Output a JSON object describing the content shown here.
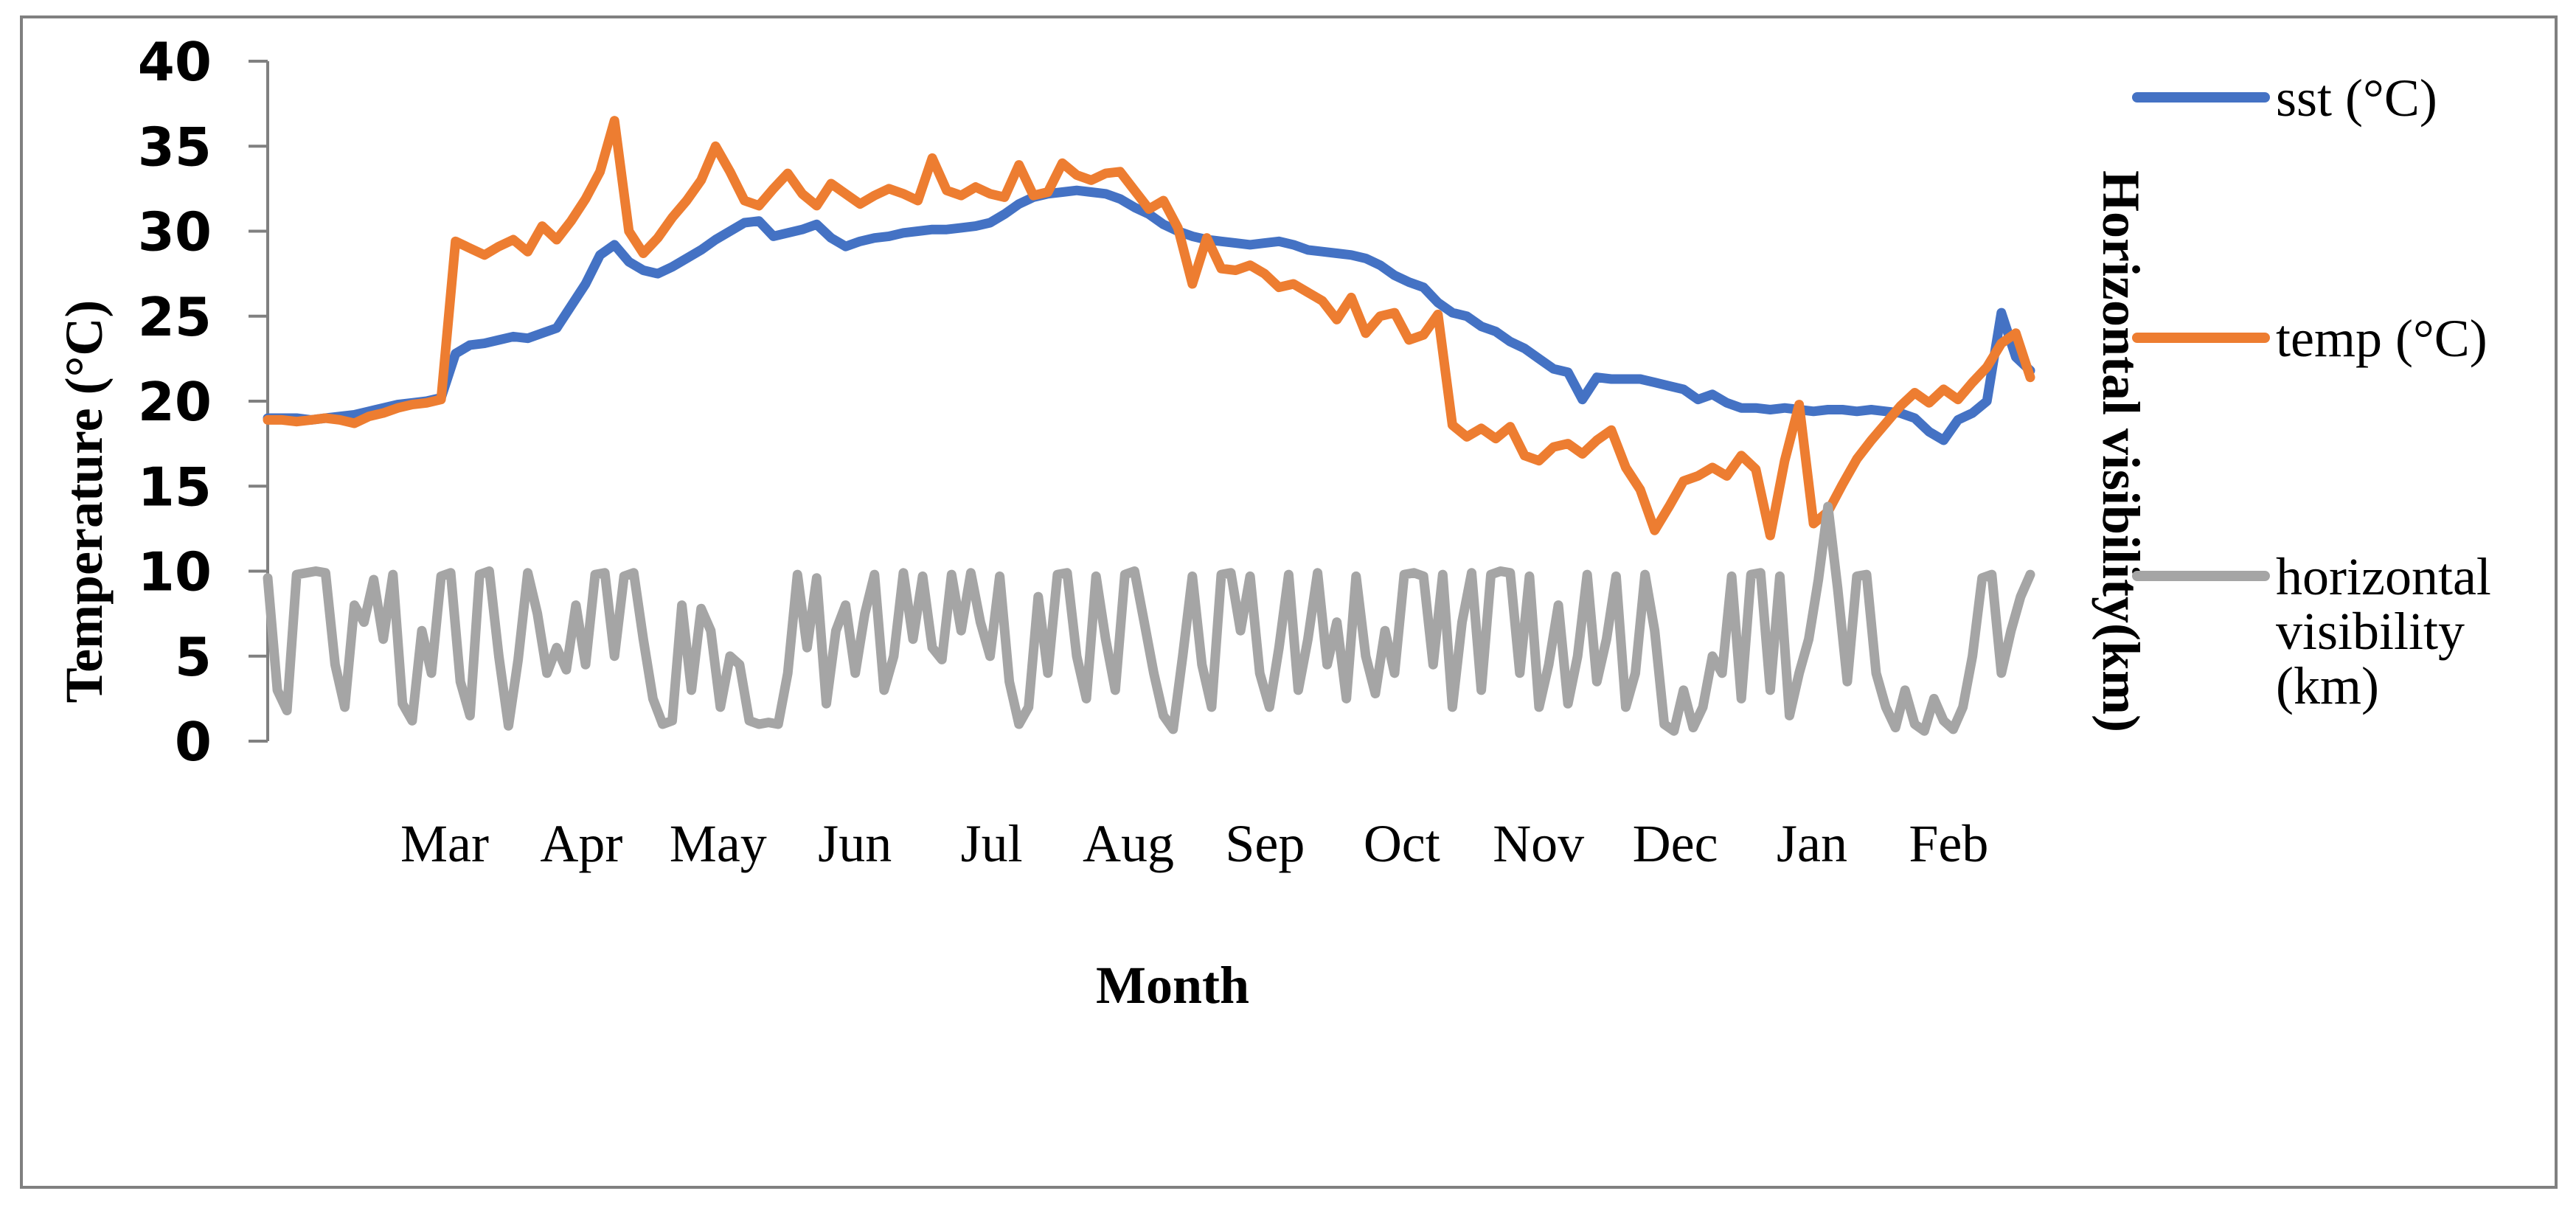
{
  "figure": {
    "background": "#FFFFFF",
    "border_color": "#808080",
    "axis_color": "#808080",
    "text_color": "#000000"
  },
  "legend": {
    "visibility_lines": [
      "horizontal",
      "visibility",
      "(km)"
    ]
  },
  "chart_data": {
    "type": "line",
    "title": "",
    "xlabel": "Month",
    "ylabel": "Temperature (°C)",
    "y2label": "Horizontal visibility(km)",
    "ylim": [
      0,
      40
    ],
    "yticks": [
      0,
      5,
      10,
      15,
      20,
      25,
      30,
      35,
      40
    ],
    "y2_axis_tick_labels_visible": false,
    "grid": false,
    "legend_position": "right",
    "months": [
      "Mar",
      "Apr",
      "May",
      "Jun",
      "Jul",
      "Aug",
      "Sep",
      "Oct",
      "Nov",
      "Dec",
      "Jan",
      "Feb"
    ],
    "x_span_days": 366,
    "x_start": "mid-February (daily values over one full year)",
    "series": [
      {
        "id": "sst",
        "name": "sst (°C)",
        "color": "#4472C4",
        "day_step": 3,
        "values": [
          19.0,
          19.0,
          19.0,
          18.9,
          19.0,
          19.1,
          19.2,
          19.4,
          19.6,
          19.8,
          19.9,
          20.0,
          20.2,
          22.8,
          23.3,
          23.4,
          23.6,
          23.8,
          23.7,
          24.0,
          24.3,
          25.6,
          26.9,
          28.6,
          29.2,
          28.2,
          27.7,
          27.5,
          27.9,
          28.4,
          28.9,
          29.5,
          30.0,
          30.5,
          30.6,
          29.7,
          29.9,
          30.1,
          30.4,
          29.6,
          29.1,
          29.4,
          29.6,
          29.7,
          29.9,
          30.0,
          30.1,
          30.1,
          30.2,
          30.3,
          30.5,
          31.0,
          31.6,
          32.0,
          32.2,
          32.3,
          32.4,
          32.3,
          32.2,
          31.9,
          31.4,
          31.0,
          30.4,
          30.0,
          29.7,
          29.5,
          29.4,
          29.3,
          29.2,
          29.3,
          29.4,
          29.2,
          28.9,
          28.8,
          28.7,
          28.6,
          28.4,
          28.0,
          27.4,
          27.0,
          26.7,
          25.8,
          25.2,
          25.0,
          24.4,
          24.1,
          23.5,
          23.1,
          22.5,
          21.9,
          21.7,
          20.1,
          21.4,
          21.3,
          21.3,
          21.3,
          21.1,
          20.9,
          20.7,
          20.1,
          20.4,
          19.9,
          19.6,
          19.6,
          19.5,
          19.6,
          19.5,
          19.4,
          19.5,
          19.5,
          19.4,
          19.5,
          19.4,
          19.3,
          19.0,
          18.2,
          17.7,
          18.9,
          19.3,
          20.0,
          25.2,
          22.6,
          21.8
        ]
      },
      {
        "id": "temp",
        "name": "temp (°C)",
        "color": "#ED7D31",
        "day_step": 3,
        "values": [
          18.9,
          18.9,
          18.8,
          18.9,
          19.0,
          18.9,
          18.7,
          19.1,
          19.3,
          19.6,
          19.8,
          19.9,
          20.1,
          29.4,
          29.0,
          28.6,
          29.1,
          29.5,
          28.8,
          30.3,
          29.5,
          30.6,
          31.9,
          33.5,
          36.5,
          30.0,
          28.7,
          29.6,
          30.8,
          31.8,
          33.0,
          35.0,
          33.5,
          31.8,
          31.5,
          32.5,
          33.4,
          32.2,
          31.5,
          32.8,
          32.2,
          31.6,
          32.1,
          32.5,
          32.2,
          31.8,
          34.3,
          32.4,
          32.1,
          32.6,
          32.2,
          32.0,
          33.9,
          32.1,
          32.3,
          34.0,
          33.3,
          33.0,
          33.4,
          33.5,
          32.4,
          31.3,
          31.8,
          30.2,
          26.9,
          29.6,
          27.8,
          27.7,
          28.0,
          27.5,
          26.7,
          26.9,
          26.4,
          25.9,
          24.8,
          26.1,
          24.0,
          25.0,
          25.2,
          23.6,
          23.9,
          25.1,
          18.6,
          17.9,
          18.4,
          17.8,
          18.5,
          16.8,
          16.5,
          17.3,
          17.5,
          16.9,
          17.7,
          18.3,
          16.1,
          14.8,
          12.4,
          13.8,
          15.3,
          15.6,
          16.1,
          15.6,
          16.8,
          16.0,
          12.1,
          16.5,
          19.8,
          12.8,
          13.5,
          15.1,
          16.6,
          17.7,
          18.7,
          19.7,
          20.5,
          19.9,
          20.7,
          20.1,
          21.1,
          22.0,
          23.4,
          24.0,
          21.4
        ]
      },
      {
        "id": "visibility",
        "name": "horizontal visibility (km)",
        "color": "#A5A5A5",
        "day_step": 2,
        "values": [
          9.6,
          3.0,
          1.8,
          9.8,
          9.9,
          10.0,
          9.9,
          4.5,
          2.0,
          8.0,
          7.0,
          9.5,
          6.0,
          9.8,
          2.2,
          1.2,
          6.5,
          4.0,
          9.7,
          9.9,
          3.5,
          1.5,
          9.8,
          10.0,
          5.0,
          0.9,
          4.8,
          9.9,
          7.5,
          4.0,
          5.5,
          4.2,
          8.0,
          4.5,
          9.8,
          9.9,
          5.0,
          9.7,
          9.9,
          6.0,
          2.5,
          1.0,
          1.2,
          8.0,
          3.0,
          7.8,
          6.5,
          2.0,
          5.0,
          4.5,
          1.2,
          1.0,
          1.1,
          1.0,
          4.0,
          9.8,
          5.5,
          9.6,
          2.2,
          6.5,
          8.0,
          4.0,
          7.5,
          9.8,
          3.0,
          5.0,
          9.9,
          6.0,
          9.7,
          5.5,
          4.8,
          9.8,
          6.5,
          9.9,
          7.0,
          5.0,
          9.7,
          3.5,
          1.0,
          2.0,
          8.5,
          4.0,
          9.8,
          9.9,
          5.0,
          2.5,
          9.7,
          6.0,
          3.0,
          9.8,
          10.0,
          7.0,
          4.0,
          1.5,
          0.7,
          5.0,
          9.7,
          4.5,
          2.0,
          9.8,
          9.9,
          6.5,
          9.7,
          4.0,
          2.0,
          5.5,
          9.8,
          3.0,
          6.0,
          9.9,
          4.5,
          7.0,
          2.5,
          9.7,
          5.0,
          2.8,
          6.5,
          4.0,
          9.8,
          9.9,
          9.7,
          4.5,
          9.8,
          2.0,
          7.0,
          9.9,
          3.0,
          9.8,
          10.0,
          9.9,
          4.0,
          9.7,
          2.0,
          4.5,
          8.0,
          2.2,
          5.0,
          9.8,
          3.5,
          6.0,
          9.7,
          2.0,
          4.0,
          9.8,
          6.5,
          1.0,
          0.6,
          3.0,
          0.8,
          2.0,
          5.0,
          4.0,
          9.7,
          2.5,
          9.8,
          9.9,
          3.0,
          9.7,
          1.5,
          4.0,
          6.0,
          9.5,
          13.8,
          9.0,
          3.5,
          9.7,
          9.8,
          4.0,
          2.0,
          0.8,
          3.0,
          1.0,
          0.6,
          2.5,
          1.2,
          0.7,
          2.0,
          5.0,
          9.6,
          9.8,
          4.0,
          6.5,
          8.5,
          9.8
        ]
      }
    ]
  }
}
